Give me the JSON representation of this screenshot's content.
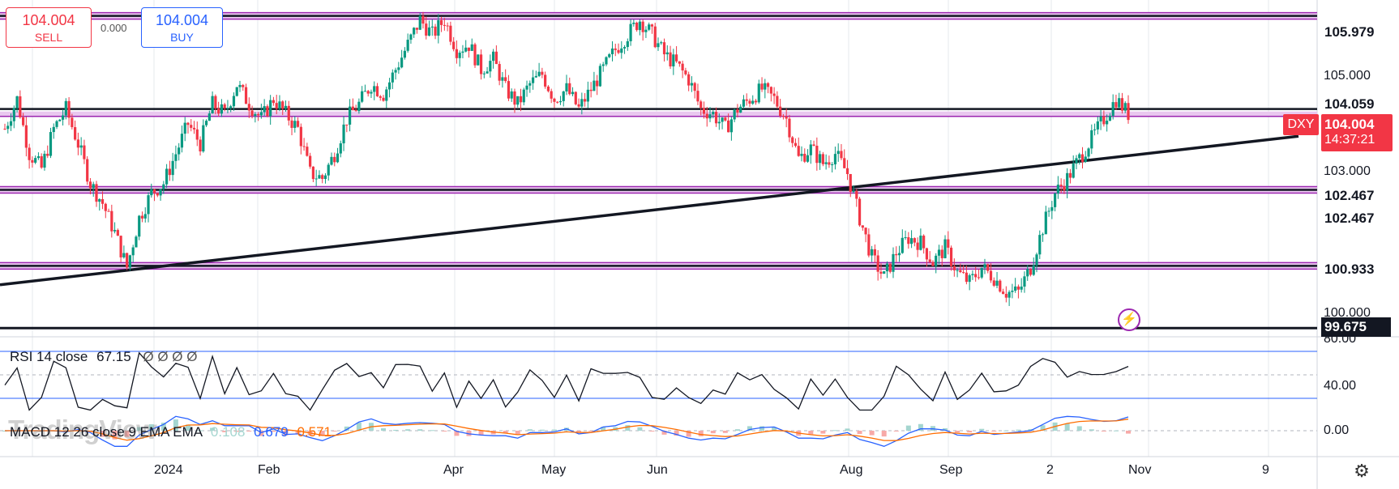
{
  "trade": {
    "sell_price": "104.004",
    "sell_label": "SELL",
    "buy_price": "104.004",
    "buy_label": "BUY",
    "spread": "0.000"
  },
  "symbol": "DXY",
  "current_price": "104.004",
  "countdown": "14:37:21",
  "price_axis_labels": [
    "105.000",
    "103.000",
    "100.000"
  ],
  "horizontal_levels": [
    {
      "label": "105.979",
      "value": 105.979,
      "style": "purple-band"
    },
    {
      "label": "104.059",
      "value": 104.059,
      "style": "none"
    },
    {
      "label": "102.467",
      "value": 102.467,
      "style": "purple-band"
    },
    {
      "label": "102.467",
      "value": 102.467,
      "style": "none"
    },
    {
      "label": "100.933",
      "value": 100.933,
      "style": "purple-band"
    },
    {
      "label": "99.675",
      "value": 99.675,
      "style": "black-line"
    }
  ],
  "rsi": {
    "title": "RSI 14 close",
    "value": "67.15",
    "placeholders": "Ø Ø Ø Ø",
    "levels": [
      "80.00",
      "40.00"
    ]
  },
  "macd": {
    "title": "MACD 12 26 close 9 EMA EMA",
    "hist": "0.108",
    "macd": "0.679",
    "signal": "0.571",
    "level": "0.00"
  },
  "time_labels": [
    "2024",
    "Feb",
    "Apr",
    "May",
    "Jun",
    "Aug",
    "Sep",
    "2",
    "Nov",
    "9"
  ],
  "watermark": "TradingView",
  "colors": {
    "up": "#089981",
    "down": "#f23645",
    "purple": "#9c27b0",
    "rsi": "#131722",
    "macd": "#2962ff",
    "signal": "#ff6d00"
  },
  "chart_data": {
    "type": "candlestick",
    "symbol": "DXY",
    "ylim": [
      99.5,
      106.3
    ],
    "x_labels": [
      "2024",
      "Feb",
      "Apr",
      "May",
      "Jun",
      "Aug",
      "Sep",
      "2",
      "Nov",
      "9"
    ],
    "close_path": [
      103.7,
      104.3,
      103.2,
      102.9,
      103.7,
      104.1,
      103.4,
      102.6,
      102.2,
      101.6,
      100.9,
      101.9,
      102.4,
      102.6,
      103.2,
      103.8,
      103.4,
      104.2,
      104.0,
      104.6,
      104.2,
      103.9,
      104.3,
      104.0,
      103.7,
      102.8,
      102.7,
      103.2,
      103.9,
      104.2,
      104.6,
      104.4,
      104.9,
      105.4,
      105.9,
      105.6,
      105.9,
      105.3,
      105.4,
      104.9,
      105.1,
      104.5,
      104.2,
      104.6,
      104.8,
      104.3,
      104.5,
      104.1,
      104.5,
      104.9,
      105.3,
      105.6,
      105.9,
      105.6,
      105.2,
      105.0,
      104.7,
      104.1,
      104.0,
      103.7,
      104.1,
      104.3,
      104.5,
      104.3,
      103.9,
      103.1,
      103.3,
      103.0,
      103.2,
      102.8,
      101.9,
      101.1,
      100.7,
      101.2,
      101.5,
      101.4,
      101.0,
      101.3,
      100.8,
      100.6,
      100.9,
      100.7,
      100.4,
      100.4,
      100.9,
      101.7,
      102.4,
      102.7,
      103.1,
      103.5,
      103.9,
      104.3,
      104.0
    ],
    "macd_line_end": 0.679,
    "macd_signal_end": 0.571,
    "macd_hist_end": 0.108,
    "rsi_end": 67.15
  }
}
